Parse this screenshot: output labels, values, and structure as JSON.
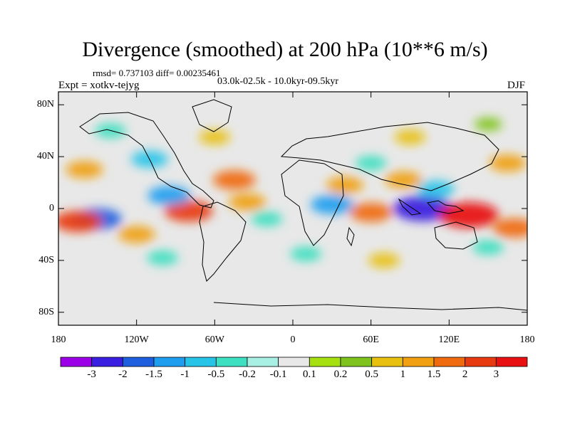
{
  "figure": {
    "title": "Divergence (smoothed) at 200 hPa (10**6 m/s)",
    "stats_line": "rmsd= 0.737103 diff= 0.00235461",
    "experiment_line": "Expt = xotkv-tejyg",
    "period_line": "03.0k-02.5k - 10.0kyr-09.5kyr",
    "season": "DJF"
  },
  "chart_data": {
    "type": "heatmap",
    "variable": "Divergence (smoothed) at 200 hPa",
    "units": "10**6 m/s",
    "projection": "cylindrical equidistant",
    "lon_range": [
      -180,
      180
    ],
    "lat_range": [
      -90,
      90
    ],
    "x_ticks": [
      "180",
      "120W",
      "60W",
      "0",
      "60E",
      "120E",
      "180"
    ],
    "y_ticks": [
      "80N",
      "40N",
      "0",
      "40S",
      "80S"
    ],
    "colorbar": {
      "labels": [
        "-3",
        "-2",
        "-1.5",
        "-1",
        "-0.5",
        "-0.2",
        "-0.1",
        "0.1",
        "0.2",
        "0.5",
        "1",
        "1.5",
        "2",
        "3"
      ],
      "colors": [
        "#9b00e6",
        "#3b1fe0",
        "#1e5fe0",
        "#1f9ef0",
        "#27c4e8",
        "#3de0c0",
        "#a9f0e4",
        "#e8e8e8",
        "#a6e010",
        "#7fc41e",
        "#e8c010",
        "#f0a010",
        "#f06a10",
        "#e83a10",
        "#e81010"
      ]
    },
    "features": [
      {
        "lon": 100,
        "lat": 0,
        "value": -3
      },
      {
        "lon": 135,
        "lat": -5,
        "value": 3
      },
      {
        "lon": -80,
        "lat": -2,
        "value": 2
      },
      {
        "lon": -150,
        "lat": -8,
        "value": -2
      },
      {
        "lon": -165,
        "lat": -10,
        "value": 2
      },
      {
        "lon": 60,
        "lat": -3,
        "value": 1.5
      },
      {
        "lon": -45,
        "lat": 22,
        "value": 1.5
      },
      {
        "lon": -160,
        "lat": 30,
        "value": 1
      },
      {
        "lon": 30,
        "lat": 3,
        "value": -1.5
      },
      {
        "lon": 85,
        "lat": 22,
        "value": 1
      },
      {
        "lon": -110,
        "lat": 38,
        "value": -1
      },
      {
        "lon": 165,
        "lat": 35,
        "value": 1
      },
      {
        "lon": -95,
        "lat": 10,
        "value": -1.5
      },
      {
        "lon": -35,
        "lat": 5,
        "value": 1
      },
      {
        "lon": 40,
        "lat": 18,
        "value": 1
      },
      {
        "lon": 170,
        "lat": -15,
        "value": 1.5
      },
      {
        "lon": -20,
        "lat": -8,
        "value": -0.5
      },
      {
        "lon": 110,
        "lat": 15,
        "value": -1
      },
      {
        "lon": 150,
        "lat": -30,
        "value": -0.5
      },
      {
        "lon": -120,
        "lat": -20,
        "value": 1
      },
      {
        "lon": 60,
        "lat": 35,
        "value": -0.5
      },
      {
        "lon": -60,
        "lat": 55,
        "value": 0.5
      },
      {
        "lon": 90,
        "lat": 55,
        "value": 0.5
      },
      {
        "lon": -100,
        "lat": -38,
        "value": -0.5
      },
      {
        "lon": 10,
        "lat": -35,
        "value": -0.5
      },
      {
        "lon": 70,
        "lat": -40,
        "value": 0.5
      },
      {
        "lon": -140,
        "lat": 60,
        "value": -0.5
      },
      {
        "lon": 150,
        "lat": 65,
        "value": 0.2
      }
    ]
  }
}
